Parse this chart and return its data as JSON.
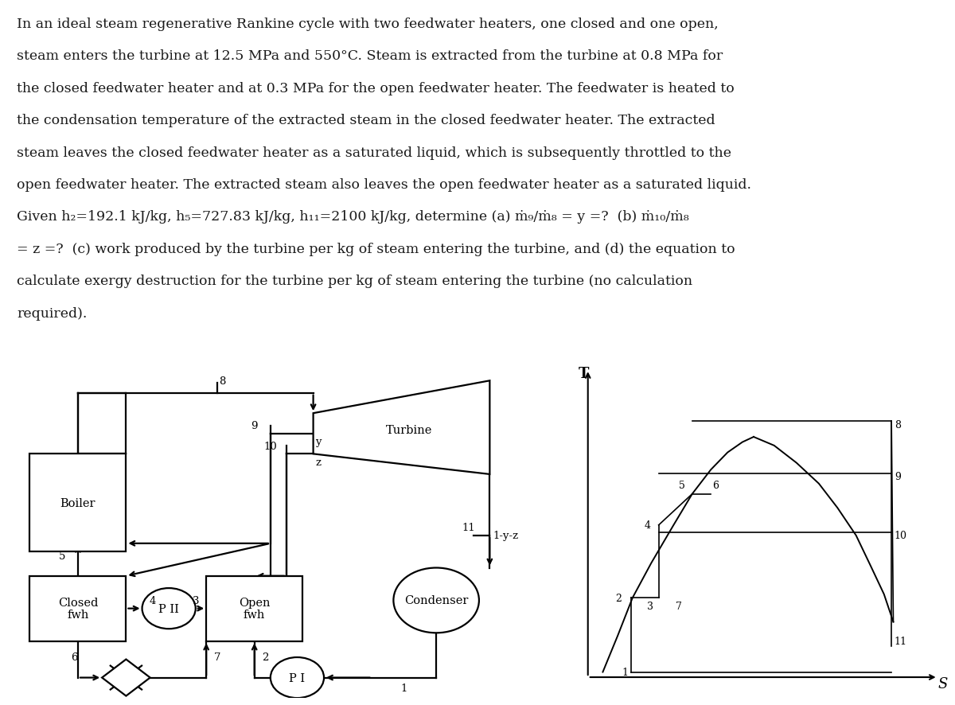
{
  "background_color": "#ffffff",
  "text_color": "#1a1a1a",
  "line_color": "#000000",
  "ts_bg": "#c8c0b0",
  "font_size_body": 12.5,
  "font_size_label": 10.5,
  "font_size_node": 9.5,
  "lw": 1.6,
  "paragraph_lines": [
    "In an ideal steam regenerative Rankine cycle with two feedwater heaters, one closed and one open,",
    "steam enters the turbine at 12.5 MPa and 550°C. Steam is extracted from the turbine at 0.8 MPa for",
    "the closed feedwater heater and at 0.3 MPa for the open feedwater heater. The feedwater is heated to",
    "the condensation temperature of the extracted steam in the closed feedwater heater. The extracted",
    "steam leaves the closed feedwater heater as a saturated liquid, which is subsequently throttled to the",
    "open feedwater heater. The extracted steam also leaves the open feedwater heater as a saturated liquid.",
    "Given h₂=192.1 kJ/kg, h₅=727.83 kJ/kg, h₁₁=2100 kJ/kg, determine (a) ṁ₉/ṁ₈ = y =?  (b) ṁ₁₀/ṁ₈",
    "= z =?  (c) work produced by the turbine per kg of steam entering the turbine, and (d) the equation to",
    "calculate exergy destruction for the turbine per kg of steam entering the turbine (no calculation",
    "required)."
  ]
}
